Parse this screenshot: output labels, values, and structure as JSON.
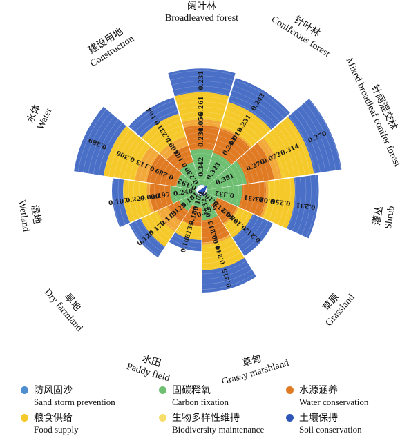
{
  "chart_data": {
    "type": "stacked-radial-bar",
    "categories": [
      {
        "cn": "阔叶林",
        "en": "Broadleaved forest"
      },
      {
        "cn": "针叶林",
        "en": "Coniferous forest"
      },
      {
        "cn": "针阔混交林",
        "en": "Mixed broadleaf conifer forest"
      },
      {
        "cn": "灌丛",
        "en": "Shrub"
      },
      {
        "cn": "草原",
        "en": "Grassland"
      },
      {
        "cn": "草甸",
        "en": "Grassy marshland"
      },
      {
        "cn": "水田",
        "en": "Paddy field"
      },
      {
        "cn": "旱地",
        "en": "Dry farmland"
      },
      {
        "cn": "湿地",
        "en": "Wetland"
      },
      {
        "cn": "水体",
        "en": "Water"
      },
      {
        "cn": "建设用地",
        "en": "Construction"
      }
    ],
    "series": [
      {
        "name": "防风固沙",
        "name_en": "Sand storm prevention",
        "color": "#4f8fcf",
        "values": [
          0.004,
          0.004,
          0.004,
          0.004,
          0.004,
          0.004,
          0.004,
          0.004,
          0.004,
          0.004,
          0.004
        ]
      },
      {
        "name": "固碳释氧",
        "name_en": "Carbon fixation",
        "color": "#6fbf73",
        "values": [
          0.342,
          0.323,
          0.381,
          0.332,
          0.108,
          0.232,
          0.108,
          0.181,
          0.246,
          0.192,
          0.23
        ]
      },
      {
        "name": "水源涵养",
        "name_en": "Water conservation",
        "color": "#e07b24",
        "values": [
          0.231,
          0.243,
          0.27,
          0.231,
          0.212,
          0.215,
          0.18,
          0.125,
          0.197,
          0.289,
          0.164
        ]
      },
      {
        "name": "生物多样性维持",
        "name_en": "Biodiversity maintenance",
        "color": "#f3a93a",
        "values": [
          0.056,
          0.017,
          0.072,
          0.023,
          0.019,
          0.023,
          0.0,
          0.113,
          0.03,
          0.113,
          0.092
        ]
      },
      {
        "name": "粮食供给",
        "name_en": "Food supply",
        "color": "#f5c92a",
        "values": [
          0.261,
          0.251,
          0.314,
          0.256,
          0.148,
          0.244,
          0.135,
          0.172,
          0.229,
          0.306,
          0.231
        ]
      },
      {
        "name": "土壤保持",
        "name_en": "Soil conservation",
        "color": "#4a6fc6",
        "values": [
          0.231,
          0.243,
          0.27,
          0.231,
          0.212,
          0.215,
          0.108,
          0.125,
          0.107,
          0.289,
          0.164
        ]
      }
    ],
    "center_values": [
      0.252
    ],
    "labels": [
      {
        "series": 1,
        "category": 0,
        "text": "0.342"
      },
      {
        "series": 1,
        "category": 1,
        "text": "0.323"
      },
      {
        "series": 1,
        "category": 2,
        "text": "0.381"
      },
      {
        "series": 1,
        "category": 3,
        "text": "0.332"
      },
      {
        "series": 1,
        "category": 4,
        "text": "0.108"
      },
      {
        "series": 1,
        "category": 5,
        "text": "0.232"
      },
      {
        "series": 1,
        "category": 6,
        "text": "0.108"
      },
      {
        "series": 1,
        "category": 7,
        "text": "0.181"
      },
      {
        "series": 1,
        "category": 8,
        "text": "0.246"
      },
      {
        "series": 1,
        "category": 9,
        "text": "0.192"
      },
      {
        "series": 1,
        "category": 10,
        "text": "0.230"
      },
      {
        "series": 2,
        "category": 0,
        "text": "0.231"
      },
      {
        "series": 2,
        "category": 1,
        "text": "0.243"
      },
      {
        "series": 2,
        "category": 2,
        "text": "0.270"
      },
      {
        "series": 2,
        "category": 3,
        "text": "0.231"
      },
      {
        "series": 2,
        "category": 4,
        "text": "0.212"
      },
      {
        "series": 2,
        "category": 5,
        "text": "0.215"
      },
      {
        "series": 2,
        "category": 6,
        "text": "0.180"
      },
      {
        "series": 2,
        "category": 7,
        "text": "0.125"
      },
      {
        "series": 2,
        "category": 8,
        "text": "0.197"
      },
      {
        "series": 2,
        "category": 9,
        "text": "0.289"
      },
      {
        "series": 2,
        "category": 10,
        "text": "0.164"
      },
      {
        "series": 3,
        "category": 0,
        "text": "0.056"
      },
      {
        "series": 3,
        "category": 1,
        "text": "0.017"
      },
      {
        "series": 3,
        "category": 2,
        "text": "0.072"
      },
      {
        "series": 3,
        "category": 3,
        "text": "0.023"
      },
      {
        "series": 3,
        "category": 4,
        "text": "0.019"
      },
      {
        "series": 3,
        "category": 5,
        "text": "0.023"
      },
      {
        "series": 3,
        "category": 7,
        "text": "0.113"
      },
      {
        "series": 3,
        "category": 8,
        "text": "0.030"
      },
      {
        "series": 3,
        "category": 9,
        "text": "0.113"
      },
      {
        "series": 3,
        "category": 10,
        "text": "0.092"
      },
      {
        "series": 4,
        "category": 0,
        "text": "0.261"
      },
      {
        "series": 4,
        "category": 1,
        "text": "0.251"
      },
      {
        "series": 4,
        "category": 2,
        "text": "0.314"
      },
      {
        "series": 4,
        "category": 3,
        "text": "0.256"
      },
      {
        "series": 4,
        "category": 4,
        "text": "0.148"
      },
      {
        "series": 4,
        "category": 5,
        "text": "0.244"
      },
      {
        "series": 4,
        "category": 6,
        "text": "0.135"
      },
      {
        "series": 4,
        "category": 7,
        "text": "0.172"
      },
      {
        "series": 4,
        "category": 8,
        "text": "0.229"
      },
      {
        "series": 4,
        "category": 9,
        "text": "0.306"
      },
      {
        "series": 4,
        "category": 10,
        "text": "0.231"
      },
      {
        "series": 5,
        "category": 0,
        "text": "0.231"
      },
      {
        "series": 5,
        "category": 1,
        "text": "0.243"
      },
      {
        "series": 5,
        "category": 2,
        "text": "0.270"
      },
      {
        "series": 5,
        "category": 3,
        "text": "0.231"
      },
      {
        "series": 5,
        "category": 4,
        "text": "0.212"
      },
      {
        "series": 5,
        "category": 5,
        "text": "0.215"
      },
      {
        "series": 5,
        "category": 6,
        "text": "0.108"
      },
      {
        "series": 5,
        "category": 7,
        "text": "0.125"
      },
      {
        "series": 5,
        "category": 8,
        "text": "0.107"
      },
      {
        "series": 5,
        "category": 9,
        "text": "0.289"
      },
      {
        "series": 5,
        "category": 10,
        "text": "0.164"
      }
    ],
    "legend_position": "bottom",
    "grid": true
  },
  "legend": [
    {
      "cn": "防风固沙",
      "en": "Sand storm prevention",
      "color": "#4f8fcf"
    },
    {
      "cn": "固碳释氧",
      "en": "Carbon fixation",
      "color": "#6fbf73"
    },
    {
      "cn": "水源涵养",
      "en": "Water conservation",
      "color": "#e07b24"
    },
    {
      "cn": "粮食供给",
      "en": "Food supply",
      "color": "#f5c92a"
    },
    {
      "cn": "生物多样性维持",
      "en": "Biodiversity maintenance",
      "color": "#f7de6a"
    },
    {
      "cn": "土壤保持",
      "en": "Soil conservation",
      "color": "#2e55b8"
    }
  ]
}
